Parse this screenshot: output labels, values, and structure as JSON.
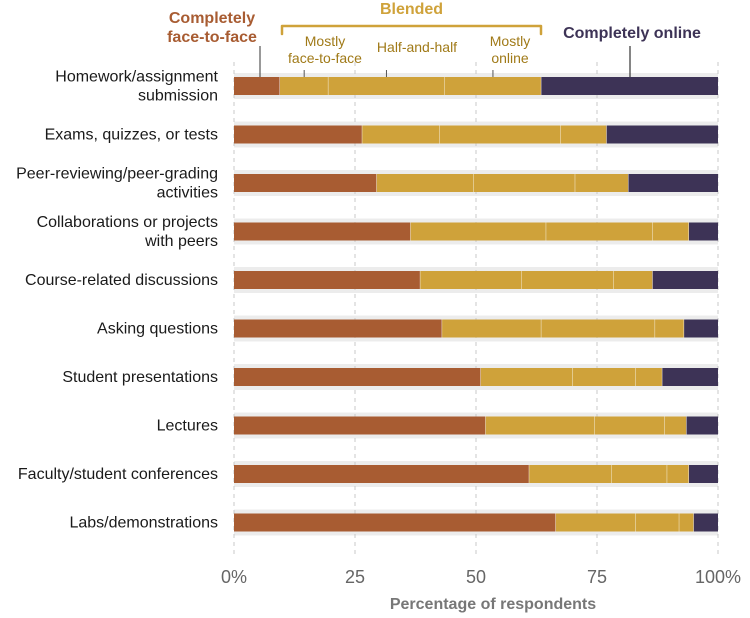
{
  "chart_data": {
    "type": "bar",
    "orientation": "horizontal",
    "stacked": true,
    "xlabel": "Percentage of respondents",
    "xlim": [
      0,
      100
    ],
    "x_ticks": [
      0,
      25,
      50,
      75,
      100
    ],
    "x_tick_labels": [
      "0%",
      "25",
      "50",
      "75",
      "100%"
    ],
    "grid": true,
    "legend": {
      "placement": "top",
      "group_label": "Blended"
    },
    "categories": [
      "Homework/assignment submission",
      "Exams, quizzes, or tests",
      "Peer-reviewing/peer-grading activities",
      "Collaborations or projects with peers",
      "Course-related discussions",
      "Asking questions",
      "Student presentations",
      "Lectures",
      "Faculty/student conferences",
      "Labs/demonstrations"
    ],
    "category_display": [
      [
        "Homework/assignment",
        "submission"
      ],
      [
        "Exams, quizzes, or tests"
      ],
      [
        "Peer-reviewing/peer-grading",
        "activities"
      ],
      [
        "Collaborations or projects",
        "with peers"
      ],
      [
        "Course-related discussions"
      ],
      [
        "Asking questions"
      ],
      [
        "Student presentations"
      ],
      [
        "Lectures"
      ],
      [
        "Faculty/student conferences"
      ],
      [
        "Labs/demonstrations"
      ]
    ],
    "series": [
      {
        "name": "Completely face-to-face",
        "legend_lines": [
          "Completely",
          "face-to-face"
        ],
        "color": "#a85c32",
        "values": [
          9.5,
          26.5,
          29.5,
          36.5,
          38.5,
          43,
          51,
          52,
          61,
          66.5
        ]
      },
      {
        "name": "Mostly face-to-face",
        "legend_lines": [
          "Mostly",
          "face-to-face"
        ],
        "color": "#cfa23a",
        "values": [
          10,
          16,
          20,
          28,
          21,
          20.5,
          19,
          22.5,
          17,
          16.5
        ]
      },
      {
        "name": "Half-and-half",
        "legend_lines": [
          "Half-and-half"
        ],
        "color": "#cfa23a",
        "values": [
          24,
          25,
          21,
          22,
          19,
          23.5,
          13,
          14.5,
          11.5,
          9
        ]
      },
      {
        "name": "Mostly online",
        "legend_lines": [
          "Mostly",
          "online"
        ],
        "color": "#cfa23a",
        "values": [
          20,
          9.5,
          11,
          7.5,
          8,
          6,
          5.5,
          4.5,
          4.5,
          3
        ]
      },
      {
        "name": "Completely online",
        "legend_lines": [
          "Completely online"
        ],
        "color": "#3d3356",
        "values": [
          36.5,
          23,
          18.5,
          6,
          13.5,
          7,
          11.5,
          6.5,
          6,
          5
        ]
      }
    ]
  }
}
